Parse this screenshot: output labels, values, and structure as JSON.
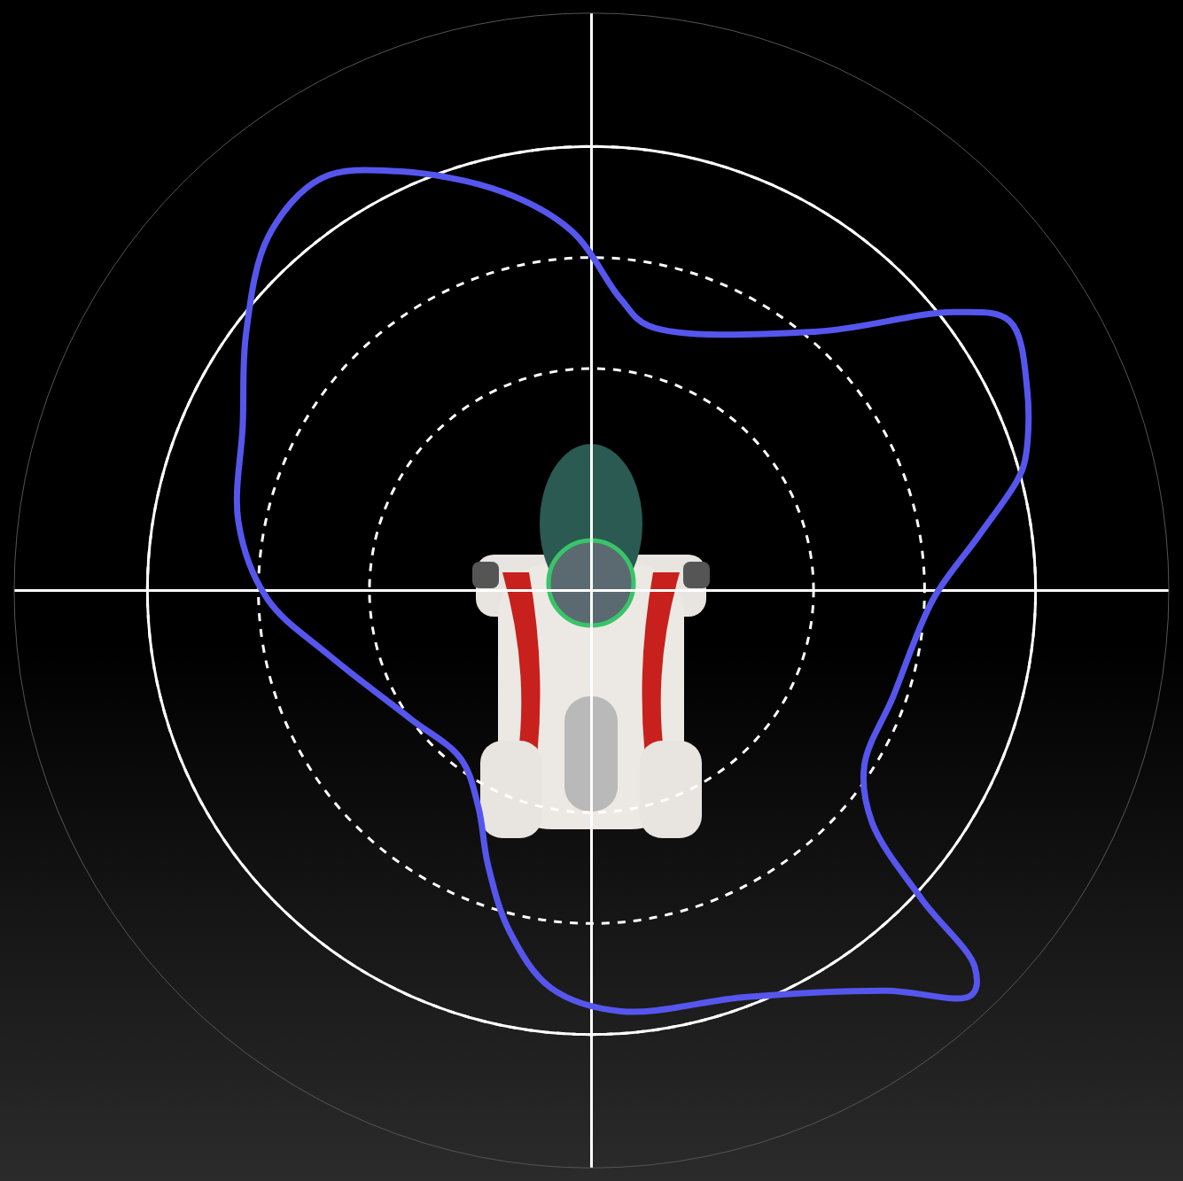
{
  "chart_data": {
    "type": "polar",
    "color": "#5656ee",
    "tick_labels": false,
    "grid": true,
    "xlim": [
      0,
      360
    ],
    "xticks": [
      0,
      90,
      180,
      270
    ],
    "ylim": [
      0,
      1.3
    ],
    "yticks": [
      0.5,
      0.75,
      1
    ],
    "x": [
      16.8,
      24.7,
      32.8,
      37.5,
      49.2,
      77.8,
      84.3,
      93.1,
      102.6,
      114.8,
      123.2,
      132.3,
      143.3,
      154.5,
      169,
      181.5,
      193.7,
      215.2,
      232.2,
      242.4,
      249.3,
      256.5,
      264.2,
      274,
      290.9,
      306.4,
      313.2,
      315.5,
      316.9,
      320.4,
      327.3,
      340.6,
      358.6,
      8.0,
      14.5,
      16.8
    ],
    "values": [
      1.02,
      1.08,
      1.12,
      1.03,
      0.77,
      0.61,
      0.66,
      0.81,
      0.92,
      1.04,
      1.11,
      1.08,
      0.97,
      0.87,
      0.81,
      0.73,
      0.61,
      0.5,
      0.48,
      0.55,
      0.66,
      0.79,
      0.9,
      0.95,
      0.98,
      1.12,
      1.25,
      1.21,
      1.02,
      0.82,
      0.73,
      0.72,
      0.77,
      0.88,
      0.99,
      1.02
    ]
  }
}
